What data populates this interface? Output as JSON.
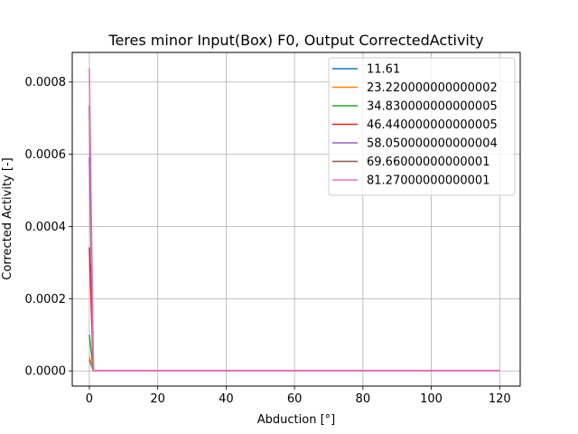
{
  "chart_data": {
    "type": "line",
    "title": "Teres minor Input(Box) F0, Output CorrectedActivity",
    "xlabel": "Abduction [°]",
    "ylabel": "Corrected Activity [-]",
    "xlim": [
      -5,
      126
    ],
    "ylim": [
      -4.2e-05,
      0.000882
    ],
    "xticks": [
      0,
      20,
      40,
      60,
      80,
      100,
      120
    ],
    "xtick_labels": [
      "0",
      "20",
      "40",
      "60",
      "80",
      "100",
      "120"
    ],
    "yticks": [
      0,
      0.0002,
      0.0004,
      0.0006,
      0.0008
    ],
    "ytick_labels": [
      "0.0000",
      "0.0002",
      "0.0004",
      "0.0006",
      "0.0008"
    ],
    "grid": true,
    "legend_position": "upper-right",
    "series": [
      {
        "name": "11.61",
        "color": "#1f77b4",
        "x": [
          0,
          1.2,
          120
        ],
        "y": [
          3e-05,
          0,
          0
        ]
      },
      {
        "name": "23.220000000000002",
        "color": "#ff7f0e",
        "x": [
          0,
          1.2,
          120
        ],
        "y": [
          3.8e-05,
          0,
          0
        ]
      },
      {
        "name": "34.830000000000005",
        "color": "#2ca02c",
        "x": [
          0,
          1.2,
          120
        ],
        "y": [
          0.0001,
          0,
          0
        ]
      },
      {
        "name": "46.440000000000005",
        "color": "#d62728",
        "x": [
          0,
          1.2,
          120
        ],
        "y": [
          0.000342,
          0,
          0
        ]
      },
      {
        "name": "58.050000000000004",
        "color": "#9467bd",
        "x": [
          0,
          1.2,
          120
        ],
        "y": [
          0.000592,
          0,
          0
        ]
      },
      {
        "name": "69.66000000000001",
        "color": "#8c564b",
        "x": [
          0,
          1.2,
          120
        ],
        "y": [
          0.000735,
          0,
          0
        ]
      },
      {
        "name": "81.27000000000001",
        "color": "#e377c2",
        "x": [
          0,
          1.2,
          120
        ],
        "y": [
          0.000838,
          0,
          0
        ]
      }
    ]
  }
}
